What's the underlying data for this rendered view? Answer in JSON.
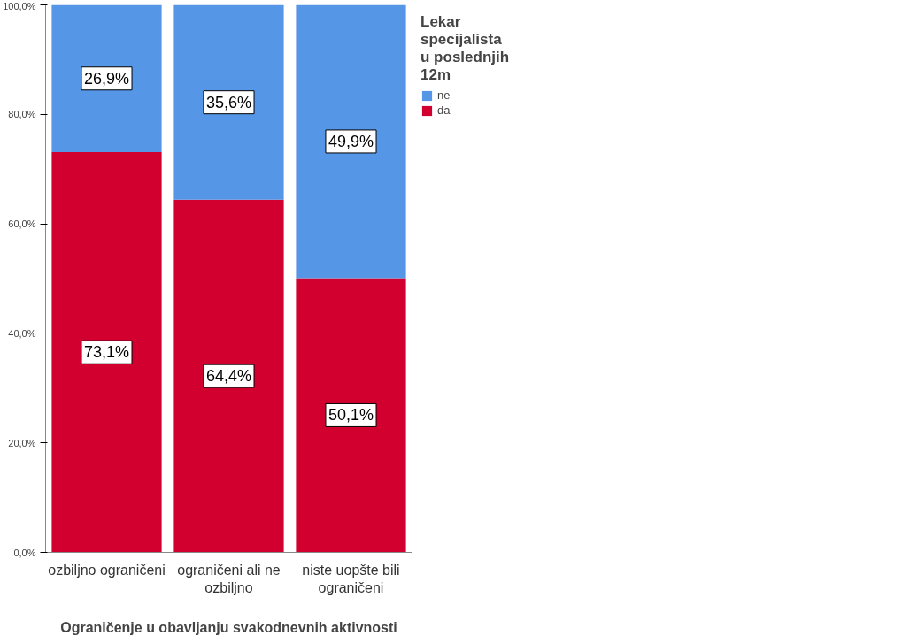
{
  "chart_data": {
    "type": "bar",
    "stacked": true,
    "xlabel": "Ograničenje u obavljanju svakodnevnih aktivnosti",
    "legend_title": "Lekar specijalista u poslednjih 12m",
    "legend": "top right",
    "grid": false,
    "categories": [
      "ozbiljno ograničeni",
      "ograničeni ali ne ozbiljno",
      "niste uopšte bili ograničeni"
    ],
    "ylim": [
      0,
      100
    ],
    "yticks": [
      {
        "value": 0,
        "label": "0,0%"
      },
      {
        "value": 20,
        "label": "20,0%"
      },
      {
        "value": 40,
        "label": "40,0%"
      },
      {
        "value": 60,
        "label": "60,0%"
      },
      {
        "value": 80,
        "label": "80,0%"
      },
      {
        "value": 100,
        "label": "100,0%"
      }
    ],
    "series": [
      {
        "name": "da",
        "color": "#d1002e",
        "values": [
          73.1,
          64.4,
          50.1
        ],
        "value_labels": [
          "73,1%",
          "64,4%",
          "50,1%"
        ]
      },
      {
        "name": "ne",
        "color": "#5596e6",
        "values": [
          26.9,
          35.6,
          49.9
        ],
        "value_labels": [
          "26,9%",
          "35,6%",
          "49,9%"
        ]
      }
    ]
  }
}
